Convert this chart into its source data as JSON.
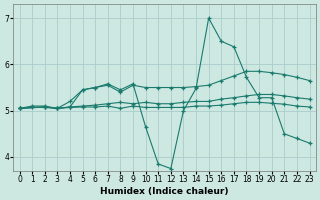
{
  "title": "",
  "xlabel": "Humidex (Indice chaleur)",
  "background_color": "#cce8e0",
  "grid_color": "#aacccc",
  "line_color": "#1a7a6e",
  "xlim": [
    -0.5,
    23.5
  ],
  "ylim": [
    3.7,
    7.3
  ],
  "yticks": [
    4,
    5,
    6,
    7
  ],
  "xticks": [
    0,
    1,
    2,
    3,
    4,
    5,
    6,
    7,
    8,
    9,
    10,
    11,
    12,
    13,
    14,
    15,
    16,
    17,
    18,
    19,
    20,
    21,
    22,
    23
  ],
  "s1x": [
    0,
    1,
    2,
    3,
    4,
    5,
    6,
    7,
    8,
    9,
    10,
    11,
    12,
    13,
    14,
    15,
    16,
    17,
    18,
    19,
    20,
    21,
    22,
    23
  ],
  "s1y": [
    5.05,
    5.1,
    5.1,
    5.05,
    5.2,
    5.45,
    5.5,
    5.55,
    5.4,
    5.55,
    5.5,
    5.5,
    5.5,
    5.5,
    5.52,
    5.55,
    5.65,
    5.75,
    5.85,
    5.85,
    5.82,
    5.78,
    5.72,
    5.65
  ],
  "s2x": [
    0,
    1,
    2,
    3,
    4,
    5,
    6,
    7,
    8,
    9,
    10,
    11,
    12,
    13,
    14,
    15,
    16,
    17,
    18,
    19,
    20,
    21,
    22,
    23
  ],
  "s2y": [
    5.05,
    5.07,
    5.07,
    5.05,
    5.07,
    5.08,
    5.08,
    5.1,
    5.05,
    5.1,
    5.07,
    5.07,
    5.07,
    5.07,
    5.1,
    5.1,
    5.12,
    5.15,
    5.18,
    5.18,
    5.16,
    5.14,
    5.1,
    5.08
  ],
  "s3x": [
    0,
    2,
    3,
    4,
    5,
    6,
    7,
    8,
    9,
    10,
    11,
    12,
    13,
    14,
    15,
    16,
    17,
    18,
    19,
    20,
    21,
    22,
    23
  ],
  "s3y": [
    5.05,
    5.08,
    5.05,
    5.08,
    5.45,
    5.5,
    5.58,
    5.45,
    5.58,
    4.65,
    3.85,
    3.75,
    5.0,
    5.48,
    7.0,
    6.5,
    6.38,
    5.72,
    5.28,
    5.28,
    4.5,
    4.4,
    4.3
  ],
  "s4x": [
    0,
    2,
    3,
    4,
    5,
    6,
    7,
    8,
    9,
    10,
    11,
    12,
    13,
    14,
    15,
    16,
    17,
    18,
    19,
    20,
    21,
    22,
    23
  ],
  "s4y": [
    5.05,
    5.08,
    5.05,
    5.08,
    5.1,
    5.12,
    5.15,
    5.18,
    5.15,
    5.18,
    5.15,
    5.15,
    5.18,
    5.2,
    5.2,
    5.25,
    5.28,
    5.32,
    5.35,
    5.35,
    5.32,
    5.28,
    5.25
  ]
}
